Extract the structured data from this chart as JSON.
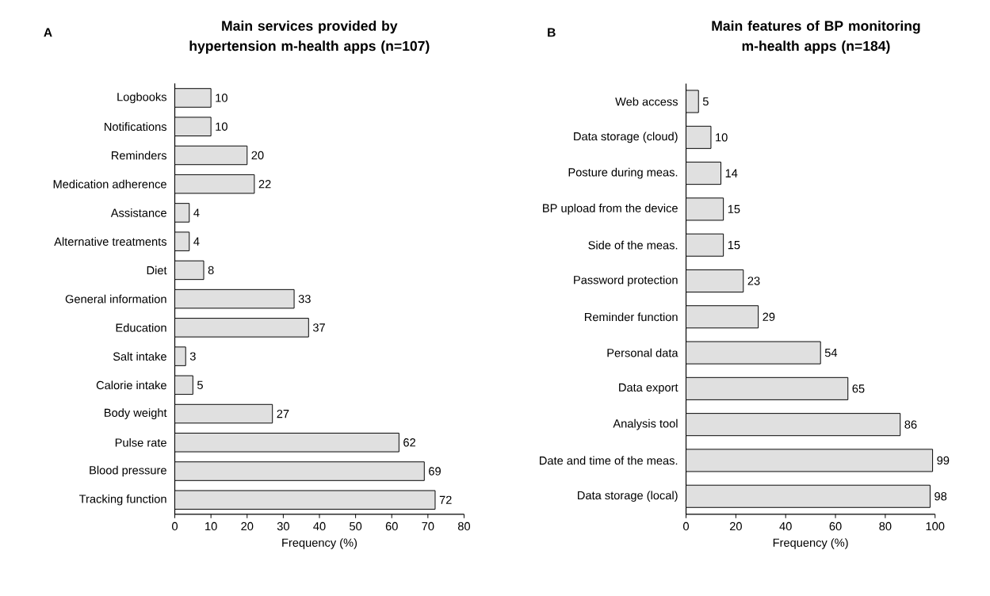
{
  "chart_data": [
    {
      "type": "bar",
      "orientation": "horizontal",
      "title": "Main services provided by hypertension m-health apps (n=107)",
      "xlabel": "Frequency (%)",
      "annotations": [
        "A"
      ],
      "categories": [
        "Logbooks",
        "Notifications",
        "Reminders",
        "Medication adherence",
        "Assistance",
        "Alternative treatments",
        "Diet",
        "General information",
        "Education",
        "Salt intake",
        "Calorie intake",
        "Body weight",
        "Pulse rate",
        "Blood pressure",
        "Tracking function"
      ],
      "values": [
        10,
        10,
        20,
        22,
        4,
        4,
        8,
        33,
        37,
        3,
        5,
        27,
        62,
        69,
        72
      ],
      "color": "#e0e0e0",
      "data_labels": true,
      "xlim": [
        0,
        80
      ],
      "xticks": [
        0,
        10,
        20,
        30,
        40,
        50,
        60,
        70,
        80
      ]
    },
    {
      "type": "bar",
      "orientation": "horizontal",
      "title": "Main features of BP monitoring m-health apps (n=184)",
      "xlabel": "Frequency (%)",
      "annotations": [
        "B"
      ],
      "categories": [
        "Web access",
        "Data storage (cloud)",
        "Posture during meas.",
        "BP upload from the device",
        "Side of the meas.",
        "Password protection",
        "Reminder function",
        "Personal data",
        "Data export",
        "Analysis tool",
        "Date and time of the meas.",
        "Data storage (local)"
      ],
      "values": [
        5,
        10,
        14,
        15,
        15,
        23,
        29,
        54,
        65,
        86,
        99,
        98
      ],
      "color": "#e0e0e0",
      "data_labels": true,
      "xlim": [
        0,
        100
      ],
      "xticks": [
        0,
        20,
        40,
        60,
        80,
        100
      ]
    }
  ]
}
